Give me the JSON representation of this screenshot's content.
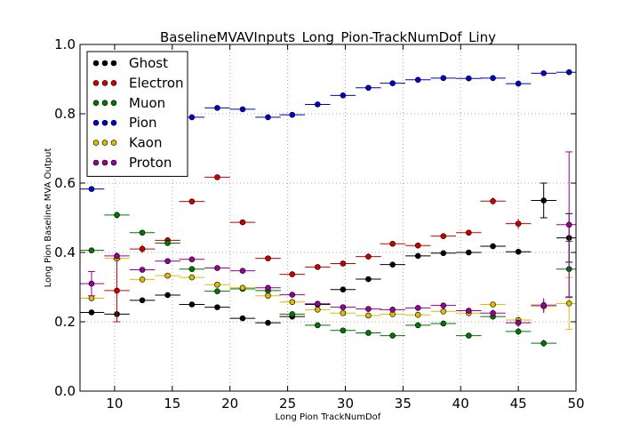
{
  "chart_data": {
    "type": "scatter",
    "title": "BaselineMVAVInputs_Long_Pion-TrackNumDof_Liny",
    "xlabel": "Long Pion TrackNumDof",
    "ylabel": "Long Pion Baseline MVA Output",
    "xlim": [
      7,
      50
    ],
    "ylim": [
      0.0,
      1.0
    ],
    "xticks": [
      10,
      15,
      20,
      25,
      30,
      35,
      40,
      45,
      50
    ],
    "yticks": [
      0.0,
      0.2,
      0.4,
      0.6,
      0.8,
      1.0
    ],
    "xtick_labels": [
      "10",
      "15",
      "20",
      "25",
      "30",
      "35",
      "40",
      "45",
      "50"
    ],
    "ytick_labels": [
      "0.0",
      "0.2",
      "0.4",
      "0.6",
      "0.8",
      "1.0"
    ],
    "grid": true,
    "legend_position": "top-left",
    "bin_halfwidth": 1.1,
    "series": [
      {
        "name": "Ghost",
        "color": "#000000",
        "x": [
          8.0,
          10.2,
          12.4,
          14.6,
          16.7,
          18.9,
          21.1,
          23.3,
          25.4,
          27.6,
          29.8,
          32.0,
          34.1,
          36.3,
          38.5,
          40.7,
          42.8,
          45.0,
          47.2,
          49.4
        ],
        "y": [
          0.227,
          0.222,
          0.262,
          0.277,
          0.25,
          0.242,
          0.21,
          0.197,
          0.215,
          0.25,
          0.293,
          0.323,
          0.365,
          0.39,
          0.398,
          0.4,
          0.418,
          0.402,
          0.55,
          0.442
        ],
        "err": [
          0.004,
          0.004,
          0.004,
          0.004,
          0.004,
          0.004,
          0.004,
          0.004,
          0.004,
          0.004,
          0.004,
          0.004,
          0.004,
          0.004,
          0.004,
          0.005,
          0.006,
          0.008,
          0.05,
          0.07
        ]
      },
      {
        "name": "Electron",
        "color": "#cc0000",
        "x": [
          10.2,
          12.4,
          14.6,
          16.7,
          18.9,
          21.1,
          23.3,
          25.4,
          27.6,
          29.8,
          32.0,
          34.1,
          36.3,
          38.5,
          40.7,
          42.8,
          45.0,
          47.2
        ],
        "y": [
          0.29,
          0.41,
          0.435,
          0.547,
          0.617,
          0.487,
          0.383,
          0.337,
          0.358,
          0.368,
          0.388,
          0.425,
          0.42,
          0.447,
          0.457,
          0.548,
          0.483,
          0.245
        ],
        "err": [
          0.09,
          0.012,
          0.008,
          0.006,
          0.005,
          0.005,
          0.005,
          0.005,
          0.005,
          0.005,
          0.005,
          0.006,
          0.006,
          0.006,
          0.007,
          0.01,
          0.015,
          0.02
        ]
      },
      {
        "name": "Muon",
        "color": "#007700",
        "x": [
          8.0,
          10.2,
          12.4,
          14.6,
          16.7,
          18.9,
          21.1,
          23.3,
          25.4,
          27.6,
          29.8,
          32.0,
          34.1,
          36.3,
          38.5,
          40.7,
          42.8,
          45.0,
          47.2,
          49.4
        ],
        "y": [
          0.406,
          0.508,
          0.457,
          0.427,
          0.352,
          0.288,
          0.295,
          0.29,
          0.222,
          0.19,
          0.175,
          0.168,
          0.16,
          0.19,
          0.195,
          0.16,
          0.215,
          0.172,
          0.138,
          0.352
        ],
        "err": [
          0.006,
          0.01,
          0.006,
          0.005,
          0.005,
          0.005,
          0.005,
          0.005,
          0.005,
          0.005,
          0.005,
          0.005,
          0.005,
          0.005,
          0.005,
          0.006,
          0.008,
          0.01,
          0.01,
          0.08
        ]
      },
      {
        "name": "Pion",
        "color": "#0000cc",
        "x": [
          8.0,
          10.2,
          12.4,
          14.6,
          16.7,
          18.9,
          21.1,
          23.3,
          25.4,
          27.6,
          29.8,
          32.0,
          34.1,
          36.3,
          38.5,
          40.7,
          42.8,
          45.0,
          47.2,
          49.4
        ],
        "y": [
          0.583,
          0.64,
          0.717,
          0.768,
          0.79,
          0.817,
          0.813,
          0.79,
          0.797,
          0.827,
          0.853,
          0.875,
          0.888,
          0.898,
          0.903,
          0.902,
          0.903,
          0.887,
          0.917,
          0.92
        ],
        "err": [
          0.003,
          0.003,
          0.003,
          0.003,
          0.003,
          0.003,
          0.003,
          0.003,
          0.003,
          0.003,
          0.003,
          0.003,
          0.003,
          0.003,
          0.003,
          0.003,
          0.003,
          0.004,
          0.004,
          0.005
        ]
      },
      {
        "name": "Kaon",
        "color": "#ddbb00",
        "x": [
          8.0,
          10.2,
          12.4,
          14.6,
          16.7,
          18.9,
          21.1,
          23.3,
          25.4,
          27.6,
          29.8,
          32.0,
          34.1,
          36.3,
          38.5,
          40.7,
          42.8,
          45.0,
          47.2,
          49.4
        ],
        "y": [
          0.268,
          0.383,
          0.322,
          0.333,
          0.328,
          0.307,
          0.298,
          0.275,
          0.257,
          0.235,
          0.225,
          0.218,
          0.222,
          0.22,
          0.23,
          0.225,
          0.25,
          0.205,
          0.245,
          0.253
        ],
        "err": [
          0.005,
          0.006,
          0.005,
          0.004,
          0.004,
          0.004,
          0.004,
          0.004,
          0.004,
          0.004,
          0.004,
          0.004,
          0.004,
          0.004,
          0.005,
          0.005,
          0.007,
          0.01,
          0.015,
          0.075
        ]
      },
      {
        "name": "Proton",
        "color": "#990099",
        "x": [
          8.0,
          10.2,
          12.4,
          14.6,
          16.7,
          18.9,
          21.1,
          23.3,
          25.4,
          27.6,
          29.8,
          32.0,
          34.1,
          36.3,
          38.5,
          40.7,
          42.8,
          45.0,
          47.2,
          49.4
        ],
        "y": [
          0.31,
          0.39,
          0.35,
          0.375,
          0.38,
          0.355,
          0.347,
          0.298,
          0.278,
          0.252,
          0.242,
          0.237,
          0.235,
          0.24,
          0.247,
          0.232,
          0.225,
          0.197,
          0.248,
          0.48
        ],
        "err": [
          0.035,
          0.01,
          0.007,
          0.005,
          0.005,
          0.005,
          0.005,
          0.005,
          0.005,
          0.005,
          0.005,
          0.005,
          0.005,
          0.005,
          0.006,
          0.007,
          0.01,
          0.012,
          0.02,
          0.21
        ]
      }
    ]
  }
}
